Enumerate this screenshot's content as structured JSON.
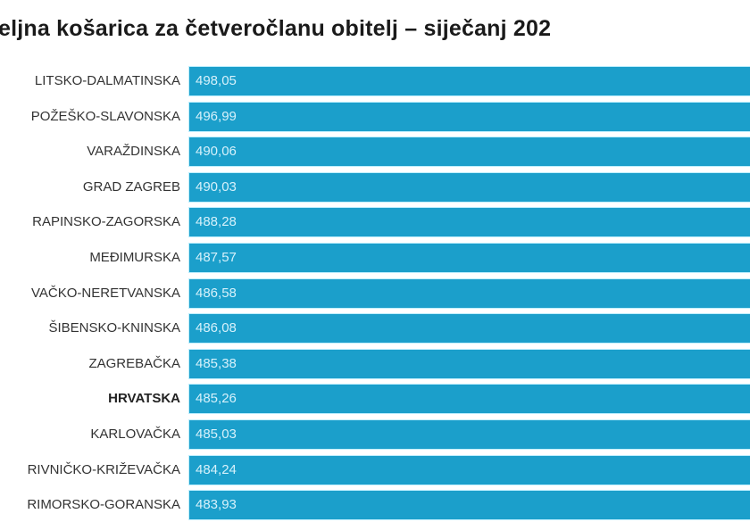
{
  "chart_data": {
    "type": "bar",
    "orientation": "horizontal",
    "title": "eljna košarica za četveročlanu obitelj – siječanj 202",
    "categories": [
      "LITSKO-DALMATINSKA",
      "POŽEŠKO-SLAVONSKA",
      "VARAŽDINSKA",
      "GRAD ZAGREB",
      "RAPINSKO-ZAGORSKA",
      "MEĐIMURSKA",
      "VAČKO-NERETVANSKA",
      "ŠIBENSKO-KNINSKA",
      "ZAGREBAČKA",
      "HRVATSKA",
      "KARLOVAČKA",
      "RIVNIČKO-KRIŽEVAČKA",
      "RIMORSKO-GORANSKA"
    ],
    "values": [
      498.05,
      496.99,
      490.06,
      490.03,
      488.28,
      487.57,
      486.58,
      486.08,
      485.38,
      485.26,
      485.03,
      484.24,
      483.93
    ],
    "data_labels": [
      "498,05",
      "496,99",
      "490,06",
      "490,03",
      "488,28",
      "487,57",
      "486,58",
      "486,08",
      "485,38",
      "485,26",
      "485,03",
      "484,24",
      "483,93"
    ],
    "highlighted_category": "HRVATSKA",
    "bar_color": "#1b9fcb",
    "label_color": "#d6f1fb",
    "grid": false,
    "legend": "none"
  }
}
